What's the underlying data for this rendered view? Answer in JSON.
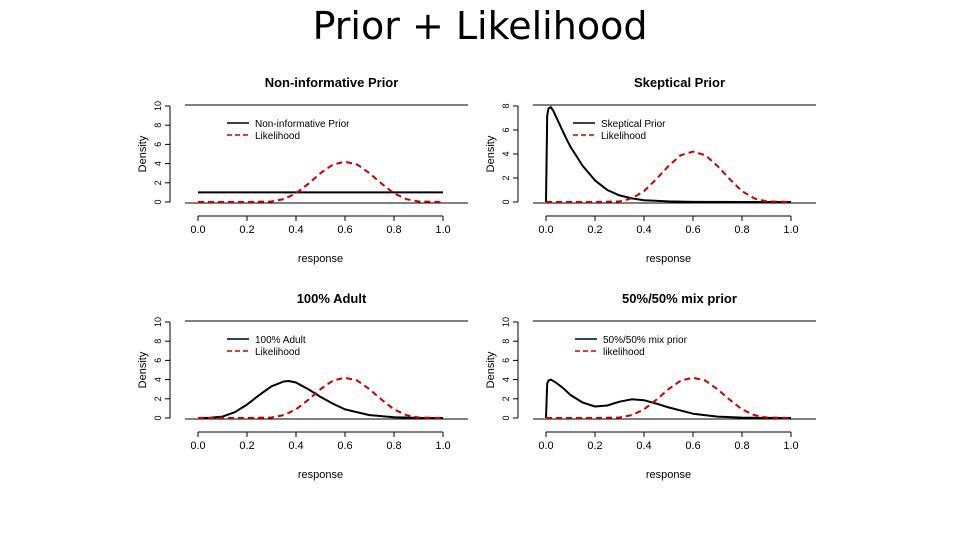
{
  "slide": {
    "title": "Prior + Likelihood"
  },
  "chart_data": [
    {
      "type": "line",
      "title": "Non-informative Prior",
      "xlabel": "response",
      "ylabel": "Density",
      "xlim": [
        0,
        1
      ],
      "ylim": [
        0,
        10
      ],
      "xticks": [
        "0.0",
        "0.2",
        "0.4",
        "0.6",
        "0.8",
        "1.0"
      ],
      "yticks": [
        "0",
        "2",
        "4",
        "6",
        "8",
        "10"
      ],
      "legend": "top-left",
      "series": [
        {
          "name": "Non-informative Prior",
          "color": "#000000",
          "style": "solid",
          "x": [
            0,
            0.1,
            0.2,
            0.3,
            0.4,
            0.5,
            0.6,
            0.7,
            0.8,
            0.9,
            1.0
          ],
          "y": [
            1,
            1,
            1,
            1,
            1,
            1,
            1,
            1,
            1,
            1,
            1
          ]
        },
        {
          "name": "Likelihood",
          "color": "#cc0000",
          "style": "dashed",
          "x": [
            0,
            0.1,
            0.2,
            0.3,
            0.35,
            0.4,
            0.45,
            0.5,
            0.55,
            0.6,
            0.65,
            0.7,
            0.75,
            0.8,
            0.85,
            0.9,
            1.0
          ],
          "y": [
            0,
            0,
            0,
            0.05,
            0.3,
            0.9,
            1.9,
            3.0,
            3.9,
            4.2,
            3.9,
            3.0,
            1.9,
            0.9,
            0.3,
            0.05,
            0
          ]
        }
      ]
    },
    {
      "type": "line",
      "title": "Skeptical Prior",
      "xlabel": "response",
      "ylabel": "Density",
      "xlim": [
        0,
        1
      ],
      "ylim": [
        0,
        8
      ],
      "xticks": [
        "0.0",
        "0.2",
        "0.4",
        "0.6",
        "0.8",
        "1.0"
      ],
      "yticks": [
        "0",
        "2",
        "4",
        "6",
        "8"
      ],
      "legend": "top-center",
      "series": [
        {
          "name": "Skeptical Prior",
          "color": "#000000",
          "style": "solid",
          "x": [
            0,
            0.005,
            0.01,
            0.02,
            0.03,
            0.05,
            0.08,
            0.1,
            0.15,
            0.2,
            0.25,
            0.3,
            0.35,
            0.4,
            0.5,
            0.6,
            0.8,
            1.0
          ],
          "y": [
            0,
            7.2,
            7.8,
            7.9,
            7.6,
            6.7,
            5.4,
            4.6,
            3.0,
            1.8,
            1.0,
            0.55,
            0.3,
            0.15,
            0.05,
            0.01,
            0,
            0
          ]
        },
        {
          "name": "Likelihood",
          "color": "#cc0000",
          "style": "dashed",
          "x": [
            0,
            0.1,
            0.2,
            0.3,
            0.35,
            0.4,
            0.45,
            0.5,
            0.55,
            0.6,
            0.65,
            0.7,
            0.75,
            0.8,
            0.85,
            0.9,
            1.0
          ],
          "y": [
            0,
            0,
            0,
            0.05,
            0.3,
            0.9,
            1.9,
            3.0,
            3.9,
            4.2,
            3.9,
            3.0,
            1.9,
            0.9,
            0.3,
            0.05,
            0
          ]
        }
      ]
    },
    {
      "type": "line",
      "title": "100% Adult",
      "xlabel": "response",
      "ylabel": "Density",
      "xlim": [
        0,
        1
      ],
      "ylim": [
        0,
        10
      ],
      "xticks": [
        "0.0",
        "0.2",
        "0.4",
        "0.6",
        "0.8",
        "1.0"
      ],
      "yticks": [
        "0",
        "2",
        "4",
        "6",
        "8",
        "10"
      ],
      "legend": "top-left",
      "series": [
        {
          "name": "100% Adult",
          "color": "#000000",
          "style": "solid",
          "x": [
            0,
            0.05,
            0.1,
            0.15,
            0.2,
            0.25,
            0.3,
            0.35,
            0.37,
            0.4,
            0.45,
            0.5,
            0.55,
            0.6,
            0.7,
            0.8,
            0.9,
            1.0
          ],
          "y": [
            0,
            0.02,
            0.15,
            0.6,
            1.4,
            2.4,
            3.3,
            3.8,
            3.85,
            3.7,
            3.0,
            2.2,
            1.5,
            0.9,
            0.3,
            0.08,
            0.01,
            0
          ]
        },
        {
          "name": "Likelihood",
          "color": "#cc0000",
          "style": "dashed",
          "x": [
            0,
            0.1,
            0.2,
            0.3,
            0.35,
            0.4,
            0.45,
            0.5,
            0.55,
            0.6,
            0.65,
            0.7,
            0.75,
            0.8,
            0.85,
            0.9,
            1.0
          ],
          "y": [
            0,
            0,
            0,
            0.05,
            0.3,
            0.9,
            1.9,
            3.0,
            3.9,
            4.2,
            3.9,
            3.0,
            1.9,
            0.9,
            0.3,
            0.05,
            0
          ]
        }
      ]
    },
    {
      "type": "line",
      "title": "50%/50% mix prior",
      "xlabel": "response",
      "ylabel": "Density",
      "xlim": [
        0,
        1
      ],
      "ylim": [
        0,
        10
      ],
      "xticks": [
        "0.0",
        "0.2",
        "0.4",
        "0.6",
        "0.8",
        "1.0"
      ],
      "yticks": [
        "0",
        "2",
        "4",
        "6",
        "8",
        "10"
      ],
      "legend": "top-left",
      "series": [
        {
          "name": "50%/50% mix prior",
          "color": "#000000",
          "style": "solid",
          "x": [
            0,
            0.005,
            0.01,
            0.02,
            0.04,
            0.07,
            0.1,
            0.15,
            0.2,
            0.25,
            0.3,
            0.35,
            0.4,
            0.45,
            0.5,
            0.6,
            0.7,
            0.8,
            0.9,
            1.0
          ],
          "y": [
            0,
            3.6,
            3.9,
            4.0,
            3.7,
            3.1,
            2.4,
            1.6,
            1.2,
            1.3,
            1.7,
            1.95,
            1.85,
            1.5,
            1.1,
            0.45,
            0.15,
            0.04,
            0.01,
            0
          ]
        },
        {
          "name": "likelihood",
          "color": "#cc0000",
          "style": "dashed",
          "x": [
            0,
            0.1,
            0.2,
            0.3,
            0.35,
            0.4,
            0.45,
            0.5,
            0.55,
            0.6,
            0.65,
            0.7,
            0.75,
            0.8,
            0.85,
            0.9,
            1.0
          ],
          "y": [
            0,
            0,
            0,
            0.05,
            0.3,
            0.9,
            1.9,
            3.0,
            3.9,
            4.2,
            3.9,
            3.0,
            1.9,
            0.9,
            0.3,
            0.05,
            0
          ]
        }
      ]
    }
  ]
}
